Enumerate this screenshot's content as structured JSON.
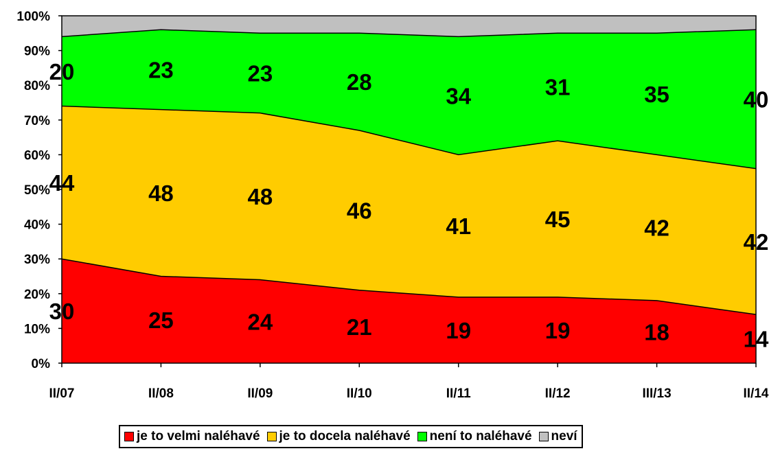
{
  "chart_data": {
    "type": "area",
    "stacked": true,
    "percent": true,
    "categories": [
      "II/07",
      "II/08",
      "II/09",
      "II/10",
      "II/11",
      "II/12",
      "III/13",
      "II/14"
    ],
    "y_ticks": [
      "0%",
      "10%",
      "20%",
      "30%",
      "40%",
      "50%",
      "60%",
      "70%",
      "80%",
      "90%",
      "100%"
    ],
    "ylim": [
      0,
      100
    ],
    "series": [
      {
        "name": "je to velmi naléhavé",
        "color": "#ff0000",
        "values": [
          30,
          25,
          24,
          21,
          19,
          19,
          18,
          14
        ]
      },
      {
        "name": "je to docela naléhavé",
        "color": "#ffcc00",
        "values": [
          44,
          48,
          48,
          46,
          41,
          45,
          42,
          42
        ]
      },
      {
        "name": "není to naléhavé",
        "color": "#00ff00",
        "values": [
          20,
          23,
          23,
          28,
          34,
          31,
          35,
          40
        ]
      },
      {
        "name": "neví",
        "color": "#c0c0c0",
        "values": [
          6,
          4,
          5,
          5,
          6,
          5,
          5,
          4
        ]
      }
    ],
    "data_labels": [
      [
        "30",
        "25",
        "24",
        "21",
        "19",
        "19",
        "18",
        "14"
      ],
      [
        "44",
        "48",
        "48",
        "46",
        "41",
        "45",
        "42",
        "42"
      ],
      [
        "20",
        "23",
        "23",
        "28",
        "34",
        "31",
        "35",
        "40"
      ]
    ],
    "legend_position": "bottom",
    "grid": false
  }
}
